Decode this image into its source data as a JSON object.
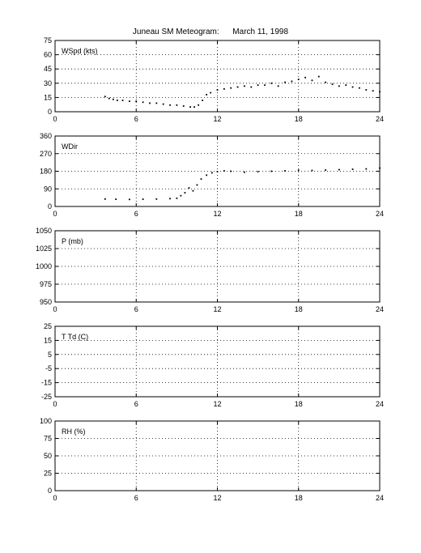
{
  "title": "Juneau SM Meteogram:      March 11, 1998",
  "chart_data": [
    {
      "type": "scatter",
      "label": "WSpd (kts)",
      "ylim": [
        0,
        75
      ],
      "yticks": [
        0,
        15,
        30,
        45,
        60,
        75
      ],
      "xlim": [
        0,
        24
      ],
      "xticks": [
        0,
        6,
        12,
        18,
        24
      ],
      "grid": true,
      "points": [
        [
          3.7,
          16
        ],
        [
          4.0,
          14
        ],
        [
          4.3,
          13
        ],
        [
          4.6,
          12
        ],
        [
          5.0,
          12
        ],
        [
          5.5,
          11
        ],
        [
          6.0,
          11
        ],
        [
          6.5,
          10
        ],
        [
          7.0,
          9
        ],
        [
          7.5,
          9
        ],
        [
          8.0,
          8
        ],
        [
          8.5,
          7
        ],
        [
          9.0,
          7
        ],
        [
          9.5,
          6
        ],
        [
          10.0,
          5
        ],
        [
          10.3,
          5
        ],
        [
          10.6,
          7
        ],
        [
          10.9,
          12
        ],
        [
          11.2,
          18
        ],
        [
          11.5,
          20
        ],
        [
          12.0,
          23
        ],
        [
          12.5,
          24
        ],
        [
          13.0,
          25
        ],
        [
          13.5,
          26
        ],
        [
          14.0,
          27
        ],
        [
          14.5,
          26
        ],
        [
          15.0,
          28
        ],
        [
          15.5,
          28
        ],
        [
          16.0,
          30
        ],
        [
          16.5,
          27
        ],
        [
          17.0,
          31
        ],
        [
          17.5,
          32
        ],
        [
          18.0,
          34
        ],
        [
          18.5,
          36
        ],
        [
          19.0,
          33
        ],
        [
          19.5,
          37
        ],
        [
          20.0,
          31
        ],
        [
          20.5,
          29
        ],
        [
          21.0,
          27
        ],
        [
          21.5,
          28
        ],
        [
          22.0,
          26
        ],
        [
          22.5,
          25
        ],
        [
          23.0,
          23
        ],
        [
          23.5,
          22
        ],
        [
          24.0,
          21
        ]
      ]
    },
    {
      "type": "scatter",
      "label": "WDir",
      "ylim": [
        0,
        360
      ],
      "yticks": [
        0,
        90,
        180,
        270,
        360
      ],
      "xlim": [
        0,
        24
      ],
      "xticks": [
        0,
        6,
        12,
        18,
        24
      ],
      "grid": true,
      "points": [
        [
          3.7,
          38
        ],
        [
          4.5,
          37
        ],
        [
          5.5,
          36
        ],
        [
          6.5,
          37
        ],
        [
          7.5,
          38
        ],
        [
          8.5,
          40
        ],
        [
          9.0,
          42
        ],
        [
          9.3,
          55
        ],
        [
          9.6,
          70
        ],
        [
          9.9,
          95
        ],
        [
          10.2,
          80
        ],
        [
          10.5,
          110
        ],
        [
          10.8,
          140
        ],
        [
          11.2,
          160
        ],
        [
          11.6,
          172
        ],
        [
          12.0,
          178
        ],
        [
          12.5,
          182
        ],
        [
          13.0,
          180
        ],
        [
          14.0,
          175
        ],
        [
          15.0,
          178
        ],
        [
          16.0,
          180
        ],
        [
          17.0,
          182
        ],
        [
          18.0,
          185
        ],
        [
          19.0,
          184
        ],
        [
          20.0,
          186
        ],
        [
          21.0,
          188
        ],
        [
          22.0,
          190
        ],
        [
          23.0,
          192
        ],
        [
          24.0,
          196
        ]
      ]
    },
    {
      "type": "scatter",
      "label": "P (mb)",
      "ylim": [
        950,
        1050
      ],
      "yticks": [
        950,
        975,
        1000,
        1025,
        1050
      ],
      "xlim": [
        0,
        24
      ],
      "xticks": [
        0,
        6,
        12,
        18,
        24
      ],
      "grid": true,
      "points": []
    },
    {
      "type": "scatter",
      "label": "T Td (C)",
      "ylim": [
        -25,
        25
      ],
      "yticks": [
        -25,
        -15,
        -5,
        5,
        15,
        25
      ],
      "ytick_labels": [
        "-25",
        "-15",
        "-5",
        "5",
        "15",
        "25"
      ],
      "xlim": [
        0,
        24
      ],
      "xticks": [
        0,
        6,
        12,
        18,
        24
      ],
      "grid": true,
      "points": []
    },
    {
      "type": "scatter",
      "label": "RH (%)",
      "ylim": [
        0,
        100
      ],
      "yticks": [
        0,
        25,
        50,
        75,
        100
      ],
      "xlim": [
        0,
        24
      ],
      "xticks": [
        0,
        6,
        12,
        18,
        24
      ],
      "grid": true,
      "points": []
    }
  ]
}
